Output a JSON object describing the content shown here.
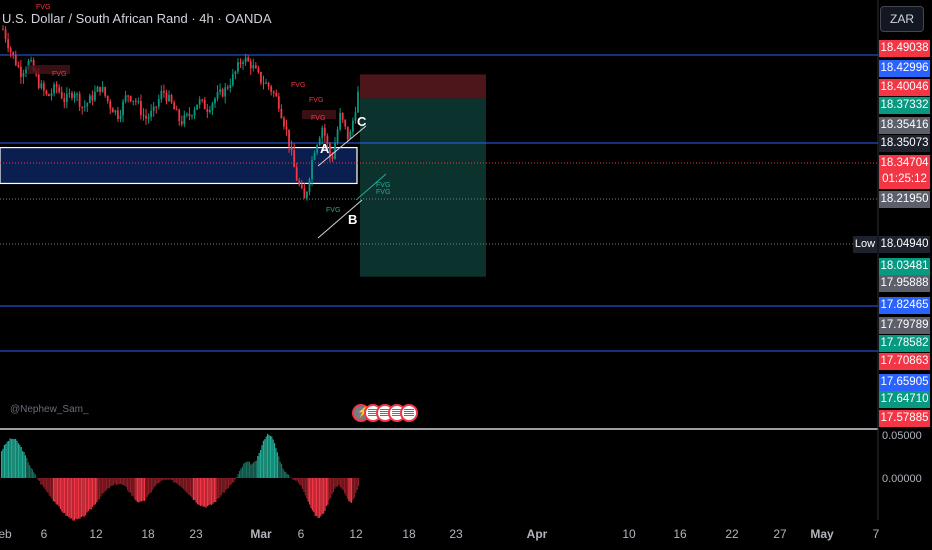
{
  "header": {
    "symbol_title": "U.S. Dollar / South African Rand · 4h · OANDA",
    "currency_button": "ZAR",
    "watermark": "@Nephew_Sam_"
  },
  "price_labels": [
    {
      "text": "18.49038",
      "color": "#f23645"
    },
    {
      "text": "18.42996",
      "color": "#2962ff"
    },
    {
      "text": "18.40046",
      "color": "#f23645"
    },
    {
      "text": "18.37332",
      "color": "#089981"
    },
    {
      "text": "18.35416",
      "color": "#5d606b"
    },
    {
      "text": "18.35073",
      "color": "#1e222d"
    },
    {
      "text": "18.34704",
      "sub": "01:25:12",
      "color": "#f23645"
    },
    {
      "text": "18.21950",
      "color": "#5d606b"
    },
    {
      "text": "18.03481",
      "color": "#089981"
    },
    {
      "text": "17.95888",
      "color": "#5d606b"
    },
    {
      "text": "17.82465",
      "color": "#2962ff"
    },
    {
      "text": "17.79789",
      "color": "#5d606b"
    },
    {
      "text": "17.78582",
      "color": "#089981"
    },
    {
      "text": "17.70863",
      "color": "#f23645"
    },
    {
      "text": "17.65905",
      "color": "#2962ff"
    },
    {
      "text": "17.64710",
      "color": "#089981"
    },
    {
      "text": "17.57885",
      "color": "#f23645"
    }
  ],
  "low_marker": {
    "label": "Low",
    "value": "18.04940"
  },
  "oscillator": {
    "upper": "0.05000",
    "zero": "0.00000"
  },
  "annotations": {
    "fvg": "FVG",
    "point_a": "A",
    "point_b": "B",
    "point_c": "C"
  },
  "x_axis": [
    "eb",
    "6",
    "12",
    "18",
    "23",
    "Mar",
    "6",
    "12",
    "18",
    "23",
    "Apr",
    "10",
    "16",
    "22",
    "27",
    "May",
    "7"
  ],
  "chart_data": {
    "type": "candlestick",
    "title": "U.S. Dollar / South African Rand · 4h · OANDA",
    "ylim": [
      17.57,
      18.52
    ],
    "x_ticks": [
      "eb",
      "6",
      "12",
      "18",
      "23",
      "Mar",
      "6",
      "12",
      "18",
      "23",
      "Apr",
      "10",
      "16",
      "22",
      "27",
      "May",
      "7"
    ],
    "close_path": [
      18.54,
      18.47,
      18.42,
      18.45,
      18.39,
      18.35,
      18.38,
      18.34,
      18.37,
      18.32,
      18.35,
      18.38,
      18.33,
      18.3,
      18.36,
      18.34,
      18.29,
      18.31,
      18.37,
      18.33,
      18.28,
      18.3,
      18.34,
      18.32,
      18.35,
      18.37,
      18.41,
      18.46,
      18.44,
      18.4,
      18.38,
      18.34,
      18.25,
      18.13,
      18.06,
      18.2,
      18.27,
      18.17,
      18.3,
      18.23,
      18.36
    ],
    "levels": [
      18.49038,
      18.35073,
      17.82465,
      17.78582
    ],
    "demand_zone": [
      18.11,
      18.21
    ],
    "position": {
      "entry": 18.347,
      "stop": 18.4,
      "target": 17.85
    },
    "oscillator_ylim": [
      -0.07,
      0.05
    ]
  }
}
